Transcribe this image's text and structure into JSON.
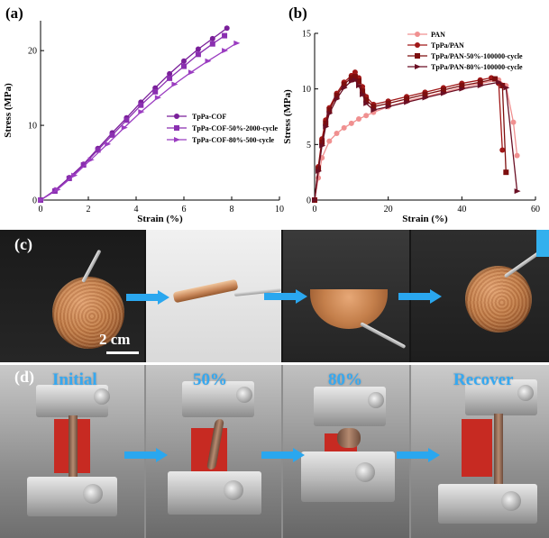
{
  "chart_data": [
    {
      "panel": "(a)",
      "type": "line",
      "xlabel": "Strain (%)",
      "ylabel": "Stress (MPa)",
      "xlim": [
        0,
        10
      ],
      "ylim": [
        0,
        24
      ],
      "xticks": [
        0,
        2,
        4,
        6,
        8,
        10
      ],
      "yticks": [
        0,
        10,
        20
      ],
      "grid": false,
      "legend_position": "center-right",
      "series": [
        {
          "name": "TpPa-COF",
          "color": "#7a1f9a",
          "marker": "circle",
          "x": [
            0,
            0.6,
            1.2,
            1.8,
            2.4,
            3.0,
            3.6,
            4.2,
            4.8,
            5.4,
            6.0,
            6.6,
            7.2,
            7.8
          ],
          "y": [
            0,
            1.3,
            3.0,
            4.8,
            6.9,
            9.0,
            11.0,
            13.1,
            15.0,
            16.9,
            18.6,
            20.2,
            21.6,
            23.0
          ]
        },
        {
          "name": "TpPa-COF-50%-2000-cycle",
          "color": "#8a2fb0",
          "marker": "square",
          "x": [
            0,
            0.6,
            1.2,
            1.8,
            2.4,
            3.0,
            3.6,
            4.2,
            4.8,
            5.4,
            6.0,
            6.6,
            7.2,
            7.7
          ],
          "y": [
            0,
            1.2,
            2.9,
            4.7,
            6.7,
            8.7,
            10.7,
            12.7,
            14.5,
            16.3,
            17.9,
            19.5,
            20.9,
            22.0
          ]
        },
        {
          "name": "TpPa-COF-80%-500-cycle",
          "color": "#9b3dc1",
          "marker": "triangle-right",
          "x": [
            0,
            0.7,
            1.4,
            2.1,
            2.8,
            3.5,
            4.2,
            4.9,
            5.6,
            6.3,
            7.0,
            7.7,
            8.2
          ],
          "y": [
            0,
            1.4,
            3.3,
            5.4,
            7.5,
            9.7,
            11.8,
            13.7,
            15.5,
            17.1,
            18.6,
            20.0,
            21.0
          ]
        }
      ]
    },
    {
      "panel": "(b)",
      "type": "line",
      "xlabel": "Strain (%)",
      "ylabel": "Stress (MPa)",
      "xlim": [
        0,
        60
      ],
      "ylim": [
        0,
        15
      ],
      "xticks": [
        0,
        20,
        40,
        60
      ],
      "yticks": [
        0,
        5,
        10,
        15
      ],
      "grid": false,
      "legend_position": "top-right",
      "series": [
        {
          "name": "PAN",
          "color": "#f09090",
          "marker": "circle",
          "x": [
            0,
            1,
            2,
            4,
            6,
            8,
            10,
            12,
            14,
            16,
            20,
            25,
            30,
            35,
            40,
            45,
            50,
            52,
            54,
            55
          ],
          "y": [
            0,
            2.0,
            3.8,
            5.3,
            6.0,
            6.5,
            6.9,
            7.3,
            7.6,
            7.9,
            8.4,
            8.9,
            9.3,
            9.7,
            10.1,
            10.5,
            10.8,
            10.3,
            7.0,
            4.0
          ]
        },
        {
          "name": "TpPa/PAN",
          "color": "#a01818",
          "marker": "circle",
          "x": [
            0,
            1,
            2,
            3,
            4,
            6,
            8,
            10,
            11,
            12,
            13,
            14,
            16,
            20,
            25,
            30,
            35,
            40,
            45,
            48,
            50,
            51
          ],
          "y": [
            0,
            3.0,
            5.5,
            7.2,
            8.3,
            9.6,
            10.6,
            11.2,
            11.5,
            11.0,
            10.2,
            9.3,
            8.6,
            8.9,
            9.3,
            9.7,
            10.1,
            10.5,
            10.8,
            11.0,
            10.5,
            4.5
          ]
        },
        {
          "name": "TpPa/PAN-50%-100000-cycle",
          "color": "#7d0e0e",
          "marker": "square",
          "x": [
            0,
            1,
            2,
            3,
            4,
            6,
            8,
            10,
            11,
            12,
            13,
            14,
            16,
            20,
            25,
            30,
            35,
            40,
            45,
            49,
            51,
            52
          ],
          "y": [
            0,
            2.8,
            5.2,
            6.9,
            8.1,
            9.4,
            10.4,
            11.0,
            11.1,
            10.7,
            9.8,
            9.0,
            8.4,
            8.7,
            9.1,
            9.5,
            9.9,
            10.3,
            10.6,
            10.9,
            10.3,
            2.5
          ]
        },
        {
          "name": "TpPa/PAN-80%-100000-cycle",
          "color": "#6a0f24",
          "marker": "triangle-right",
          "x": [
            0,
            1,
            2,
            3,
            4,
            6,
            8,
            10,
            11,
            12,
            13,
            14,
            16,
            20,
            25,
            30,
            35,
            40,
            45,
            50,
            52,
            55
          ],
          "y": [
            0,
            2.6,
            4.9,
            6.6,
            7.8,
            9.1,
            10.1,
            10.7,
            10.8,
            10.3,
            9.5,
            8.7,
            8.1,
            8.4,
            8.8,
            9.2,
            9.6,
            10.0,
            10.3,
            10.6,
            10.1,
            0.8
          ]
        }
      ]
    }
  ],
  "photo_panels": {
    "c": {
      "letter": "(c)",
      "scale_label": "2 cm"
    },
    "d": {
      "letter": "(d)",
      "frames": [
        "Initial",
        "50%",
        "80%",
        "Recover"
      ]
    }
  },
  "colors": {
    "arrow": "#2aa7ef",
    "label_blue": "#36a8f0"
  }
}
